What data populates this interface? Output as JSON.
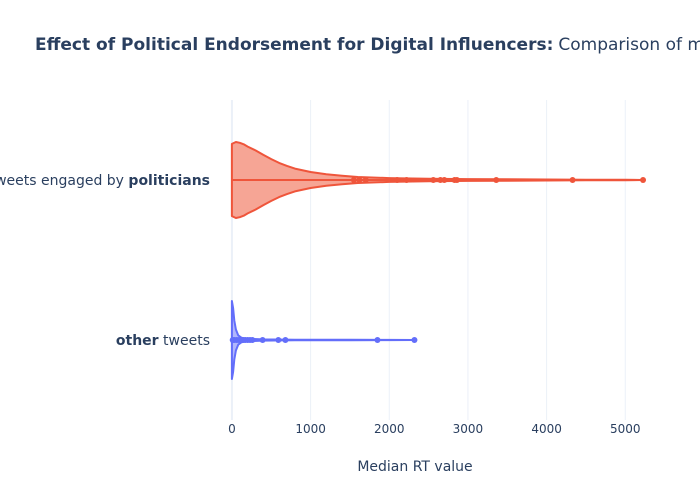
{
  "chart_data": {
    "type": "violin",
    "orientation": "horizontal",
    "title_bold": "Effect of Political Endorsement for Digital Influencers:",
    "title_rest": "Comparison of median retweets",
    "xlabel": "Median RT value",
    "xlim": [
      -50,
      5950
    ],
    "xticks": [
      0,
      1000,
      2000,
      3000,
      4000,
      5000
    ],
    "xtick_labels": [
      "0",
      "1000",
      "2000",
      "3000",
      "4000",
      "5000"
    ],
    "grid": true,
    "legend": "none",
    "series": [
      {
        "category_prefix": "tweets engaged by ",
        "category_bold": "politicians",
        "category_suffix": "",
        "color": "#EF553B",
        "fill": "#F6A595",
        "density": [
          [
            0,
            0.95
          ],
          [
            50,
            1.0
          ],
          [
            100,
            0.98
          ],
          [
            150,
            0.94
          ],
          [
            200,
            0.88
          ],
          [
            300,
            0.78
          ],
          [
            400,
            0.66
          ],
          [
            500,
            0.55
          ],
          [
            600,
            0.45
          ],
          [
            700,
            0.37
          ],
          [
            800,
            0.3
          ],
          [
            1000,
            0.21
          ],
          [
            1200,
            0.15
          ],
          [
            1400,
            0.11
          ],
          [
            1600,
            0.08
          ],
          [
            2000,
            0.05
          ],
          [
            2500,
            0.035
          ],
          [
            3000,
            0.025
          ],
          [
            3500,
            0.018
          ],
          [
            4000,
            0.012
          ],
          [
            4500,
            0.008
          ],
          [
            5000,
            0.004
          ],
          [
            5226,
            0.0
          ]
        ],
        "points": [
          1550,
          1620,
          1700,
          2100,
          2220,
          2560,
          2650,
          2700,
          2830,
          2860,
          3360,
          4330,
          5226
        ]
      },
      {
        "category_prefix": "",
        "category_bold": "other",
        "category_suffix": " tweets",
        "color": "#636EFA",
        "fill": "#636EFA",
        "density": [
          [
            0,
            1.0
          ],
          [
            15,
            0.82
          ],
          [
            30,
            0.5
          ],
          [
            50,
            0.27
          ],
          [
            80,
            0.12
          ],
          [
            120,
            0.06
          ],
          [
            200,
            0.03
          ],
          [
            400,
            0.015
          ],
          [
            800,
            0.008
          ],
          [
            1500,
            0.004
          ],
          [
            2000,
            0.002
          ],
          [
            2320,
            0.0
          ]
        ],
        "points": [
          10,
          30,
          60,
          90,
          110,
          140,
          170,
          200,
          230,
          260,
          390,
          590,
          680,
          1850,
          2320
        ]
      }
    ]
  }
}
